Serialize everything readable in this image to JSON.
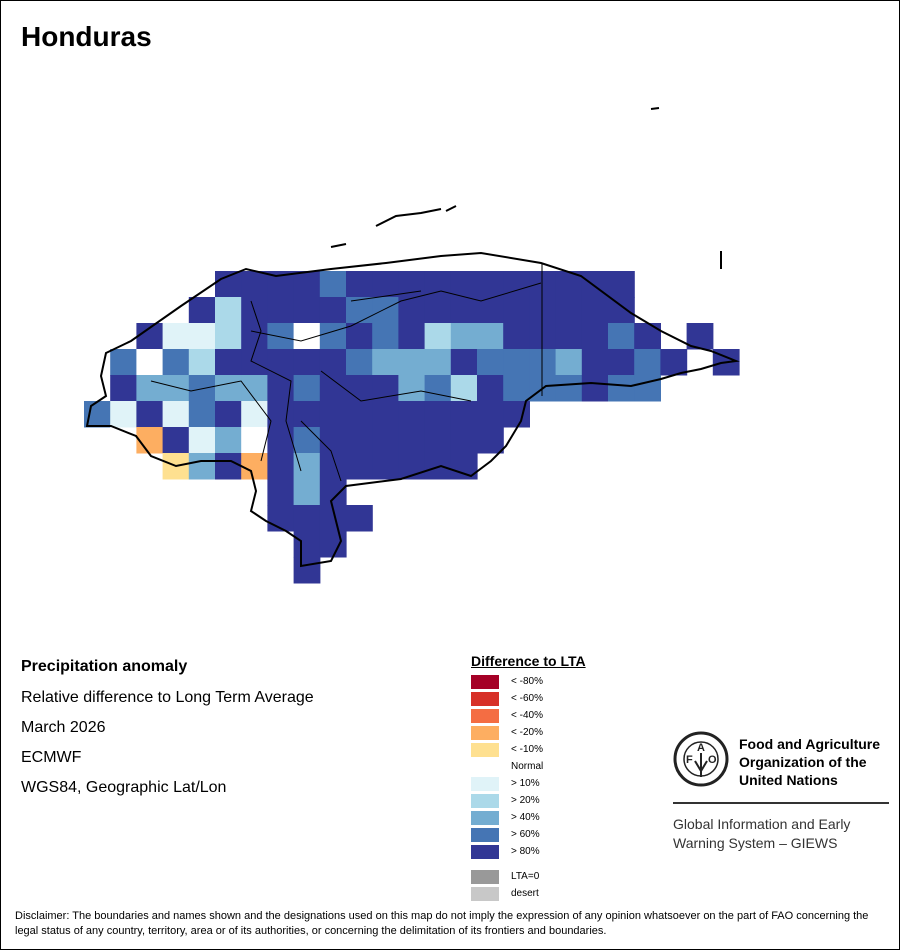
{
  "title": "Honduras",
  "info": {
    "title": "Precipitation anomaly",
    "line1": "Relative difference to Long Term Average",
    "line2": "March 2026",
    "line3": "ECMWF",
    "line4": "WGS84, Geographic Lat/Lon"
  },
  "legend": {
    "title": "Difference to LTA",
    "items": [
      {
        "code": "R4",
        "label": "< -80%",
        "color": "#a50026"
      },
      {
        "code": "R3",
        "label": "< -60%",
        "color": "#d73027"
      },
      {
        "code": "R2",
        "label": "< -40%",
        "color": "#f46d43"
      },
      {
        "code": "O",
        "label": "< -20%",
        "color": "#fdae61"
      },
      {
        "code": "Y",
        "label": "< -10%",
        "color": "#fee090"
      },
      {
        "code": "W",
        "label": "Normal",
        "color": "#ffffff"
      },
      {
        "code": "T",
        "label": "> 10%",
        "color": "#e0f3f8"
      },
      {
        "code": "S",
        "label": "> 20%",
        "color": "#abd9e9"
      },
      {
        "code": "L",
        "label": "> 40%",
        "color": "#74add1"
      },
      {
        "code": "M",
        "label": "> 60%",
        "color": "#4575b4"
      },
      {
        "code": "D",
        "label": "> 80%",
        "color": "#313695"
      }
    ],
    "extra": [
      {
        "code": "Z",
        "label": "LTA=0",
        "color": "#999999"
      },
      {
        "code": "X",
        "label": "desert",
        "color": "#c8c8c8"
      }
    ]
  },
  "grid": {
    "note_codes": "'.' = no data; other letters = legend codes",
    "rows": [
      ".....DDDDMDDDDDDDDDDD....",
      "....DSDDDDMMDDDDDDDDD....",
      "..DTTSDMWMDMDSLLDDDDMD.D.",
      ".MWMSDDDDDMLLLDMMMLDDMD.D",
      ".DLLMLLDMDDDLMSDMMMDMM...",
      "MTDTMDTDDDDDDDDDD........",
      "..ODTLWDMDDDDDDD.........",
      "...YLDODLDDDDDD..........",
      ".......DLD...............",
      ".......DDDD..............",
      "........DD...............",
      "........D................"
    ]
  },
  "fao": {
    "logo_text": "FAO FIAT PANIS",
    "name_line1": "Food and Agriculture",
    "name_line2": "Organization of the",
    "name_line3": "United Nations",
    "giews_line1": "Global Information and Early",
    "giews_line2": "Warning System – GIEWS"
  },
  "disclaimer": "Disclaimer: The boundaries and names shown and the designations used on this map do not imply the expression of any opinion whatsoever on the part of FAO concerning the legal status of any country, territory, area or of its authorities, or concerning the delimitation of its frontiers and boundaries."
}
